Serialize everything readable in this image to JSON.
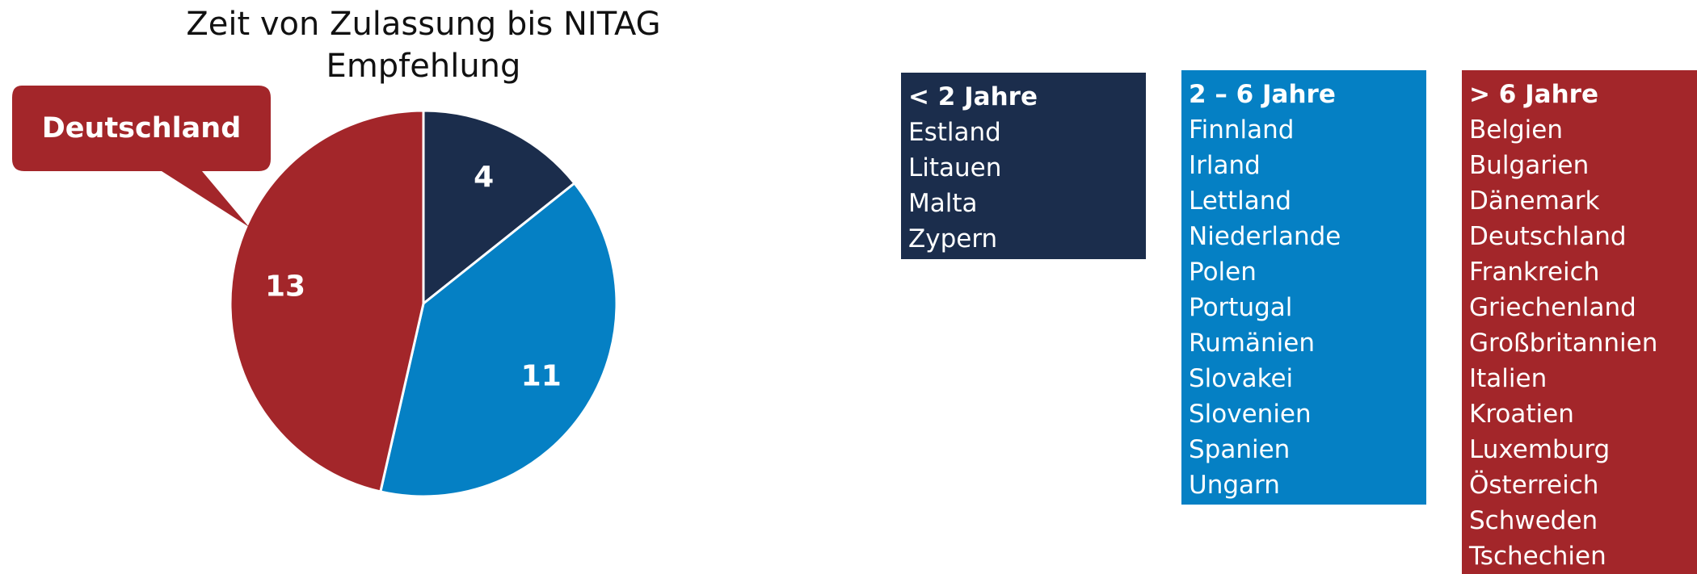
{
  "chart_data": {
    "type": "pie",
    "title": "Zeit von Zulassung bis NITAG Empfehlung",
    "categories": [
      "< 2 Jahre",
      "2 – 6 Jahre",
      "> 6 Jahre"
    ],
    "values": [
      4,
      11,
      13
    ],
    "colors": [
      "#1b2d4c",
      "#0580c4",
      "#a3262a"
    ],
    "annotation": "Deutschland",
    "country_lists": [
      [
        "Estland",
        "Litauen",
        "Malta",
        "Zypern"
      ],
      [
        "Finnland",
        "Irland",
        "Lettland",
        "Niederlande",
        "Polen",
        "Portugal",
        "Rumänien",
        "Slovakei",
        "Slovenien",
        "Spanien",
        "Ungarn"
      ],
      [
        "Belgien",
        "Bulgarien",
        "Dänemark",
        "Deutschland",
        "Frankreich",
        "Griechenland",
        "Großbritannien",
        "Italien",
        "Kroatien",
        "Luxemburg",
        "Österreich",
        "Schweden",
        "Tschechien"
      ]
    ]
  }
}
